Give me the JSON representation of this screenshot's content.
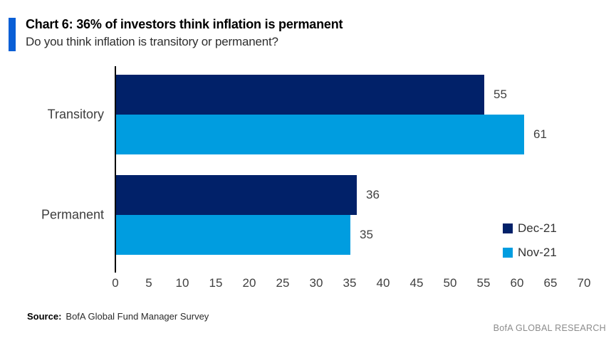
{
  "header": {
    "title": "Chart 6: 36% of investors think inflation is permanent",
    "subtitle": "Do you think inflation is transitory or permanent?",
    "accent_color": "#0a5fd6"
  },
  "chart_data": {
    "type": "bar",
    "orientation": "horizontal",
    "title": "Chart 6: 36% of investors think inflation is permanent",
    "subtitle": "Do you think inflation is transitory or permanent?",
    "categories": [
      "Transitory",
      "Permanent"
    ],
    "series": [
      {
        "name": "Dec-21",
        "color": "#012169",
        "values": [
          55,
          36
        ]
      },
      {
        "name": "Nov-21",
        "color": "#009DE0",
        "values": [
          61,
          35
        ]
      }
    ],
    "xlim": [
      0,
      70
    ],
    "xticks": [
      0,
      5,
      10,
      15,
      20,
      25,
      30,
      35,
      40,
      45,
      50,
      55,
      60,
      65,
      70
    ],
    "grid": false,
    "value_labels": true,
    "legend_position": "right-middle",
    "axis_color": "#000000",
    "label_color": "#404040"
  },
  "footer": {
    "source_label": "Source:",
    "source_text": "BofA Global Fund Manager Survey",
    "brand": "BofA GLOBAL RESEARCH"
  }
}
